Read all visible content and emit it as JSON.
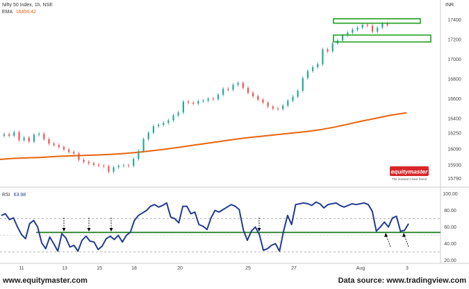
{
  "header": {
    "symbol": "Nifty 50 Index, 1h, NSE",
    "ema_label": "EMA",
    "ema_value": "16456.42",
    "currency": "INR"
  },
  "rsi_header": {
    "label": "RSI",
    "value": "63.98"
  },
  "logo": {
    "text": "equitymaster",
    "tagline": "The investor's best friend"
  },
  "footer": {
    "left": "www.equitymaster.com",
    "right": "Data source: www.tradingview.com"
  },
  "colors": {
    "up_candle": "#26a69a",
    "down_candle": "#ef5350",
    "ema": "#e8630a",
    "rsi": "#1f3a93",
    "support_line": "#1a7a1a",
    "zone_box": "#1a9e1a",
    "logo_bg": "#d9262b"
  },
  "chart_data": [
    {
      "type": "candlestick",
      "title": "Nifty 50 Index, 1h, NSE",
      "x_ticks": [
        "11",
        "13",
        "15",
        "18",
        "20",
        "25",
        "27",
        "Aug",
        "3"
      ],
      "y_ticks": [
        15790,
        15930,
        16090,
        16250,
        16400,
        16600,
        16800,
        17000,
        17200,
        17400
      ],
      "ylim": [
        15760,
        17530
      ],
      "close": [
        16240,
        16225,
        16260,
        16180,
        16205,
        16165,
        16235,
        16245,
        16190,
        16145,
        16130,
        16110,
        16085,
        16060,
        16045,
        15980,
        15960,
        15945,
        15930,
        15920,
        15915,
        15860,
        15905,
        15920,
        15925,
        15920,
        15990,
        16070,
        16190,
        16255,
        16320,
        16335,
        16355,
        16380,
        16430,
        16460,
        16570,
        16560,
        16550,
        16575,
        16580,
        16600,
        16595,
        16640,
        16700,
        16690,
        16740,
        16760,
        16710,
        16660,
        16625,
        16590,
        16560,
        16520,
        16500,
        16495,
        16530,
        16580,
        16620,
        16680,
        16810,
        16880,
        16920,
        16950,
        17100,
        17080,
        17160,
        17190,
        17240,
        17270,
        17300,
        17320,
        17350,
        17340,
        17280,
        17320,
        17360,
        17345
      ],
      "ema": {
        "name": "EMA",
        "last_value": 16456.42,
        "points": [
          [
            0,
            15985
          ],
          [
            20,
            15995
          ],
          [
            40,
            16000
          ],
          [
            60,
            16005
          ],
          [
            80,
            16015
          ],
          [
            100,
            16020
          ],
          [
            120,
            16025
          ],
          [
            140,
            16030
          ],
          [
            160,
            16035
          ],
          [
            180,
            16045
          ],
          [
            200,
            16058
          ],
          [
            220,
            16073
          ],
          [
            240,
            16090
          ],
          [
            260,
            16110
          ],
          [
            280,
            16130
          ],
          [
            300,
            16150
          ],
          [
            320,
            16170
          ],
          [
            340,
            16190
          ],
          [
            360,
            16208
          ],
          [
            380,
            16222
          ],
          [
            400,
            16237
          ],
          [
            420,
            16252
          ],
          [
            440,
            16266
          ],
          [
            460,
            16285
          ],
          [
            480,
            16310
          ],
          [
            500,
            16340
          ],
          [
            520,
            16372
          ],
          [
            540,
            16400
          ],
          [
            560,
            16430
          ],
          [
            585,
            16456.42
          ]
        ]
      },
      "resistance_zone": {
        "low": 17365,
        "high": 17410,
        "from_x": 480,
        "to_x": 605
      },
      "support_zone": {
        "low": 17175,
        "high": 17245,
        "from_x": 480,
        "to_x": 620
      }
    },
    {
      "type": "line",
      "title": "RSI",
      "current": 63.98,
      "y_ticks": [
        20,
        40,
        60,
        80,
        100
      ],
      "ylim": [
        18,
        103
      ],
      "upper_band": 70,
      "lower_band": 30,
      "support_level": 53.5,
      "values": [
        74,
        76,
        69,
        71,
        60,
        51,
        46,
        64,
        68,
        60,
        41,
        34,
        48,
        40,
        31,
        52,
        47,
        36,
        38,
        31,
        44,
        49,
        43,
        42,
        33,
        37,
        46,
        49,
        45,
        50,
        42,
        50,
        54,
        68,
        74,
        77,
        80,
        85,
        87,
        84,
        86,
        89,
        72,
        70,
        65,
        85,
        85,
        76,
        78,
        63,
        61,
        57,
        71,
        80,
        78,
        81,
        84,
        87,
        85,
        81,
        57,
        44,
        55,
        60,
        51,
        32,
        34,
        38,
        40,
        31,
        55,
        74,
        63,
        87,
        88,
        89,
        88,
        86,
        90,
        88,
        83,
        87,
        88,
        89,
        86,
        84,
        86,
        88,
        87,
        88,
        89,
        87,
        79,
        55,
        60,
        66,
        60,
        71,
        73,
        55,
        56,
        64
      ],
      "down_arrows_at": [
        92,
        128,
        160,
        373
      ],
      "up_arrows_at": [
        558,
        584
      ]
    }
  ]
}
